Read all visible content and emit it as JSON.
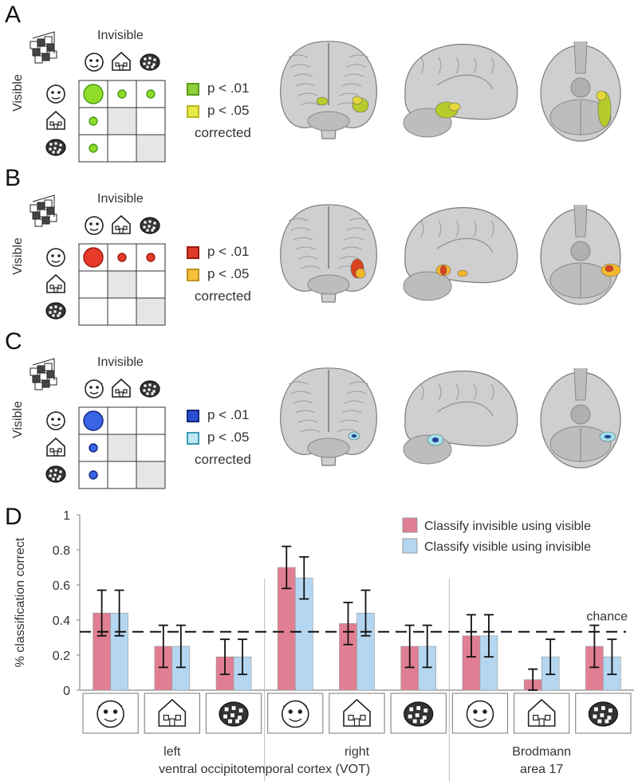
{
  "panels": [
    {
      "letter": "A",
      "invisible_label": "Invisible",
      "visible_label": "Visible",
      "legend": [
        {
          "label": "p < .01",
          "fill": "#8fcf3a",
          "stroke": "#5a9a1a"
        },
        {
          "label": "p < .05",
          "fill": "#e8e84a",
          "stroke": "#b8b820"
        }
      ],
      "corrected": "corrected",
      "dot_color": "#8fdc2a",
      "dot_stroke": "#4a9a1a",
      "matrix": [
        [
          3,
          1,
          1
        ],
        [
          1,
          0,
          0
        ],
        [
          1,
          0,
          0
        ]
      ],
      "blob_colors": [
        "#b7cc2a",
        "#e6d83a"
      ]
    },
    {
      "letter": "B",
      "invisible_label": "Invisible",
      "visible_label": "Visible",
      "legend": [
        {
          "label": "p < .01",
          "fill": "#dd3a2a",
          "stroke": "#9a1a10"
        },
        {
          "label": "p < .05",
          "fill": "#f5c23a",
          "stroke": "#c0901a"
        }
      ],
      "corrected": "corrected",
      "dot_color": "#e83a2a",
      "dot_stroke": "#9a1a10",
      "matrix": [
        [
          3,
          1,
          1
        ],
        [
          0,
          0,
          0
        ],
        [
          0,
          0,
          0
        ]
      ],
      "blob_colors": [
        "#d9431f",
        "#f5b82a"
      ]
    },
    {
      "letter": "C",
      "invisible_label": "Invisible",
      "visible_label": "Visible",
      "legend": [
        {
          "label": "p < .01",
          "fill": "#2a4fd0",
          "stroke": "#16257a"
        },
        {
          "label": "p < .05",
          "fill": "#bfe8f5",
          "stroke": "#3a9ab5"
        }
      ],
      "corrected": "corrected",
      "dot_color": "#3a64e6",
      "dot_stroke": "#16257a",
      "matrix": [
        [
          3,
          0,
          0
        ],
        [
          1,
          0,
          0
        ],
        [
          1,
          0,
          0
        ]
      ],
      "blob_colors": [
        "#1f3fa8",
        "#9fe3ef"
      ]
    }
  ],
  "panel_d": {
    "letter": "D",
    "chance_label": "chance",
    "group_labels": [
      {
        "line1": "left",
        "line2": ""
      },
      {
        "line1": "right",
        "line2": ""
      },
      {
        "line1": "Brodmann",
        "line2": "area 17"
      }
    ],
    "vot_label": "ventral occipitotemporal cortex (VOT)",
    "stimulus_icons": [
      "face-icon",
      "house-icon",
      "scrambled-icon",
      "face-icon",
      "house-icon",
      "scrambled-icon",
      "face-icon",
      "house-icon",
      "scrambled-icon"
    ]
  },
  "chart_data": {
    "type": "bar",
    "categories": [
      "left face",
      "left house",
      "left scrambled",
      "right face",
      "right house",
      "right scrambled",
      "BA17 face",
      "BA17 house",
      "BA17 scrambled"
    ],
    "series": [
      {
        "name": "Classify invisible using visible",
        "color": "#e07f93",
        "values": [
          0.44,
          0.25,
          0.19,
          0.7,
          0.38,
          0.25,
          0.31,
          0.06,
          0.25
        ],
        "errors": [
          0.13,
          0.12,
          0.1,
          0.12,
          0.12,
          0.12,
          0.12,
          0.06,
          0.12
        ]
      },
      {
        "name": "Classify visible using invisible",
        "color": "#b4d6f0",
        "values": [
          0.44,
          0.25,
          0.19,
          0.64,
          0.44,
          0.25,
          0.31,
          0.19,
          0.19
        ],
        "errors": [
          0.13,
          0.12,
          0.1,
          0.12,
          0.13,
          0.12,
          0.12,
          0.1,
          0.1
        ]
      }
    ],
    "ylabel": "% classification correct",
    "yticks": [
      "0",
      "0.2",
      "0.4",
      "0.6",
      "0.8",
      "1"
    ],
    "ylim": [
      0,
      1
    ],
    "chance": 0.333,
    "chance_label": "chance",
    "legend_position": "top-right"
  }
}
